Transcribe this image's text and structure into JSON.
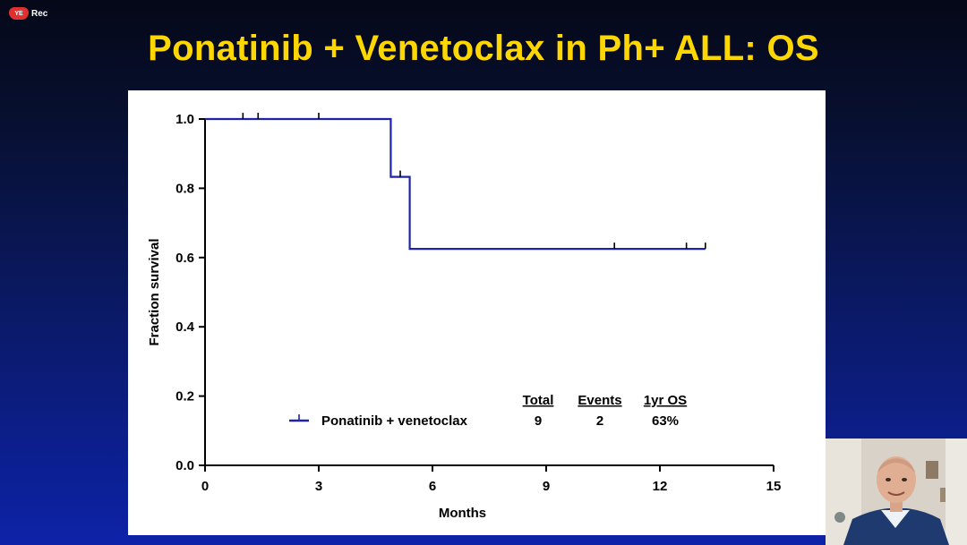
{
  "recording": {
    "badge_icon": "record-icon",
    "badge_text": "Rec",
    "icon_text": "YE"
  },
  "slide": {
    "title": "Ponatinib + Venetoclax in Ph+ ALL: OS"
  },
  "chart_data": {
    "type": "line",
    "subtype": "kaplan-meier step",
    "xlabel": "Months",
    "ylabel": "Fraction survival",
    "xlim": [
      0,
      15
    ],
    "ylim": [
      0,
      1.0
    ],
    "xticks": [
      0,
      3,
      6,
      9,
      12,
      15
    ],
    "xtick_labels": [
      "0",
      "3",
      "6",
      "9",
      "12",
      "15"
    ],
    "yticks": [
      0,
      0.2,
      0.4,
      0.6,
      0.8,
      1.0
    ],
    "ytick_labels": [
      "0.0",
      "0.2",
      "0.4",
      "0.6",
      "0.8",
      "1.0"
    ],
    "grid": false,
    "series": [
      {
        "name": "Ponatinib + venetoclax",
        "color": "#1f23a8",
        "steps": [
          {
            "x": 0,
            "y": 1.0
          },
          {
            "x": 4.9,
            "y": 0.833
          },
          {
            "x": 5.4,
            "y": 0.625
          },
          {
            "x": 13.2,
            "y": 0.625
          }
        ],
        "censored": [
          {
            "x": 1.0,
            "y": 1.0
          },
          {
            "x": 1.4,
            "y": 1.0
          },
          {
            "x": 3.0,
            "y": 1.0
          },
          {
            "x": 5.15,
            "y": 0.833
          },
          {
            "x": 10.8,
            "y": 0.625
          },
          {
            "x": 12.7,
            "y": 0.625
          },
          {
            "x": 13.2,
            "y": 0.625
          }
        ]
      }
    ],
    "legend_table": {
      "headers": [
        "Total",
        "Events",
        "1yr OS"
      ],
      "rows": [
        {
          "label": "Ponatinib + venetoclax",
          "values": [
            "9",
            "2",
            "63%"
          ]
        }
      ]
    }
  }
}
